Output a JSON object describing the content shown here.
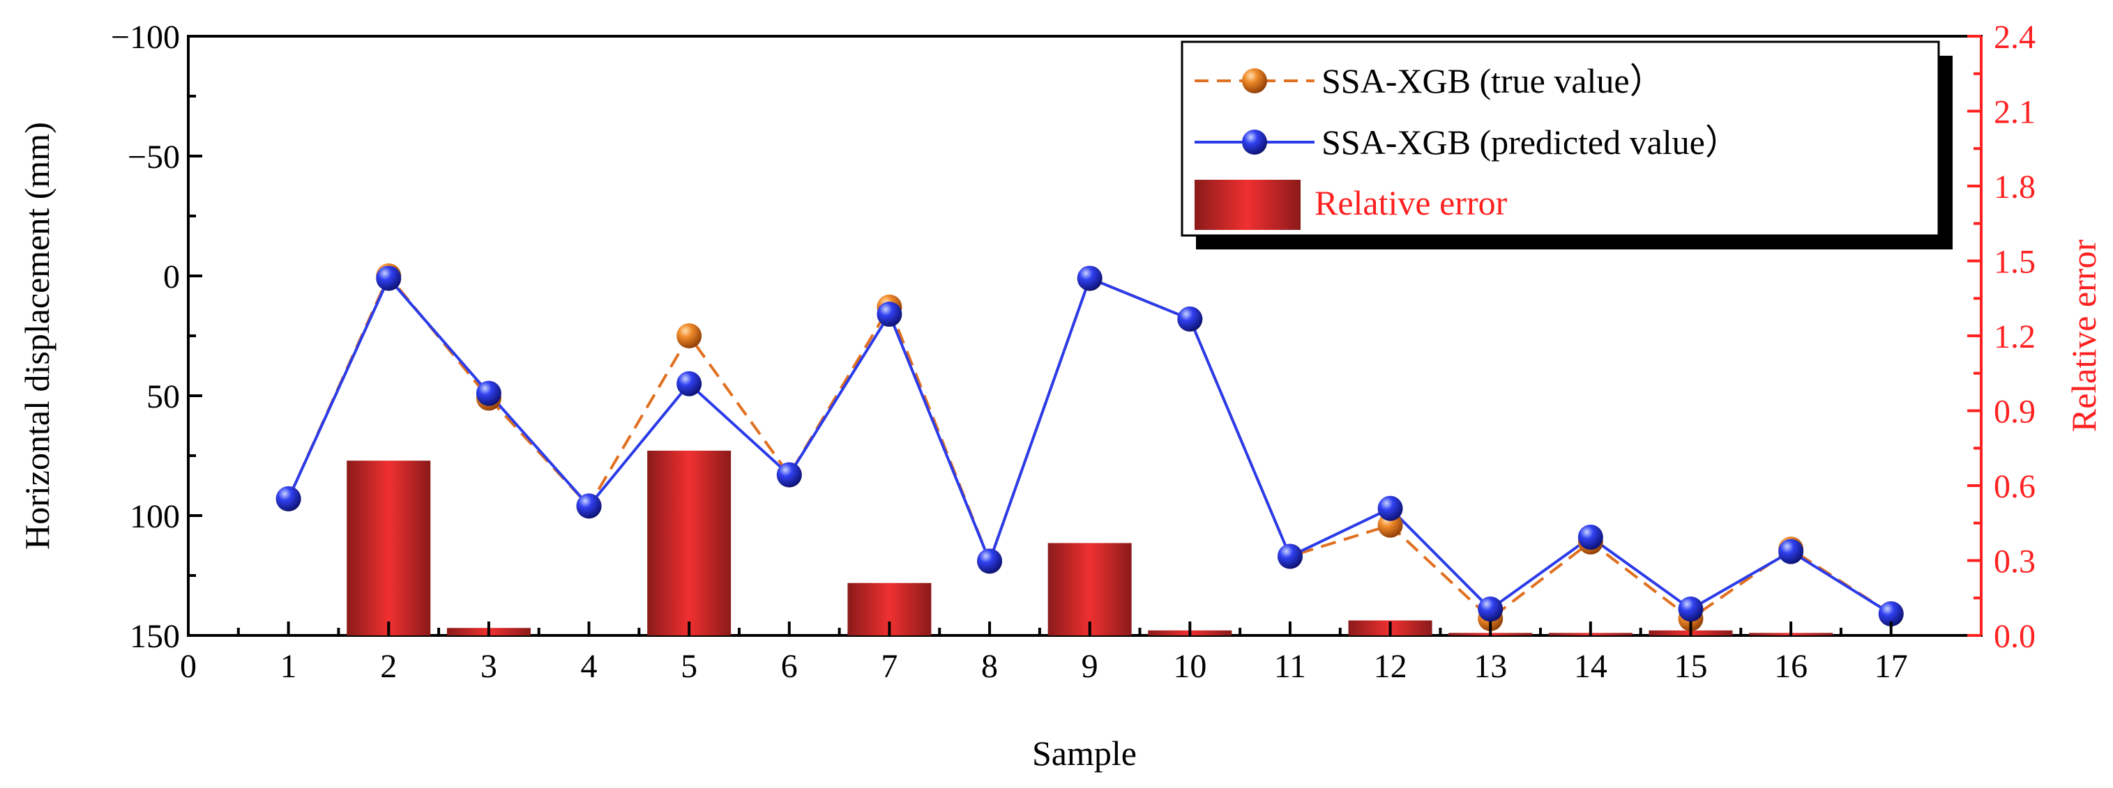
{
  "chart_data": {
    "type": "bar+line",
    "x": [
      1,
      2,
      3,
      4,
      5,
      6,
      7,
      8,
      9,
      10,
      11,
      12,
      13,
      14,
      15,
      16,
      17
    ],
    "x_ticks": [
      "0",
      "1",
      "2",
      "3",
      "4",
      "5",
      "6",
      "7",
      "8",
      "9",
      "10",
      "11",
      "12",
      "13",
      "14",
      "15",
      "16",
      "17"
    ],
    "xlabel": "Sample",
    "xlim": [
      0,
      17.9
    ],
    "ylabel_left": "Horizontal displacement (mm)",
    "ylim_left": [
      -100,
      150
    ],
    "y_ticks_left": [
      "−100",
      "−50",
      "0",
      "50",
      "100",
      "150"
    ],
    "y_tick_values_left": [
      -100,
      -50,
      0,
      50,
      100,
      150
    ],
    "ylabel_right": "Relative error",
    "ylim_right": [
      0,
      2.4
    ],
    "y_ticks_right": [
      "0.0",
      "0.3",
      "0.6",
      "0.9",
      "1.2",
      "1.5",
      "1.8",
      "2.1",
      "2.4"
    ],
    "y_tick_values_right": [
      0,
      0.3,
      0.6,
      0.9,
      1.2,
      1.5,
      1.8,
      2.1,
      2.4
    ],
    "series": [
      {
        "name": "SSA-XGB (true value）",
        "kind": "line",
        "axis": "left",
        "style": "dashed",
        "color": "#E07020",
        "values": [
          93,
          0,
          51,
          96,
          25,
          83,
          13,
          119,
          1,
          18,
          117,
          104,
          143,
          111,
          143,
          114,
          141
        ]
      },
      {
        "name": "SSA-XGB (predicted value）",
        "kind": "line",
        "axis": "left",
        "style": "solid",
        "color": "#2B3BE8",
        "values": [
          93,
          1,
          49,
          96,
          45,
          83,
          16,
          119,
          1,
          18,
          117,
          97,
          139,
          109,
          139,
          115,
          141
        ]
      },
      {
        "name": "Relative error",
        "kind": "bar",
        "axis": "right",
        "color": "#D62A2A",
        "values": [
          0,
          0.7,
          0.03,
          0,
          0.74,
          0,
          0.21,
          0,
          0.37,
          0.02,
          0,
          0.06,
          0.01,
          0.01,
          0.02,
          0.01,
          0
        ]
      }
    ],
    "legend": {
      "placement": "top-right",
      "entries": [
        "SSA-XGB (true value）",
        "SSA-XGB (predicted value）",
        "Relative error"
      ]
    },
    "colors": {
      "left_axis": "#000000",
      "right_axis": "#FF2020",
      "legend_error_text": "#FF2020"
    }
  }
}
